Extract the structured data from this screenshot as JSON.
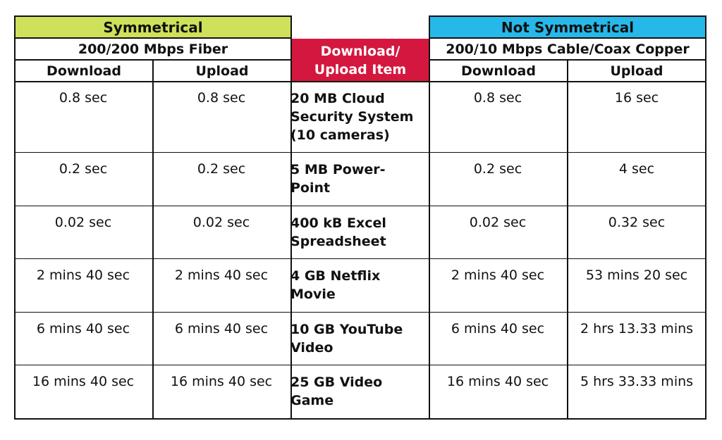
{
  "chart_data": {
    "type": "table",
    "groups": [
      {
        "title": "Symmetrical",
        "subtitle": "200/200 Mbps Fiber",
        "color": "#cfe05a"
      },
      {
        "title": "Not Symmetrical",
        "subtitle": "200/10 Mbps Cable/Coax Copper",
        "color": "#27b8ea"
      }
    ],
    "item_header": [
      "Download/",
      "Upload Item"
    ],
    "item_header_color": "#d4173e",
    "columns": [
      "Download",
      "Upload",
      "Download",
      "Upload"
    ],
    "rows": [
      {
        "item": [
          "20 MB Cloud",
          "Security System",
          "(10 cameras)"
        ],
        "sym_download": "0.8 sec",
        "sym_upload": "0.8 sec",
        "nsym_download": "0.8 sec",
        "nsym_upload": "16 sec"
      },
      {
        "item": [
          "5 MB Power-",
          "Point"
        ],
        "sym_download": "0.2 sec",
        "sym_upload": "0.2 sec",
        "nsym_download": "0.2 sec",
        "nsym_upload": "4 sec"
      },
      {
        "item": [
          "400 kB Excel",
          "Spreadsheet"
        ],
        "sym_download": "0.02 sec",
        "sym_upload": "0.02 sec",
        "nsym_download": "0.02 sec",
        "nsym_upload": "0.32 sec"
      },
      {
        "item": [
          "4 GB Netflix",
          "Movie"
        ],
        "sym_download": "2 mins 40 sec",
        "sym_upload": "2 mins 40 sec",
        "nsym_download": "2 mins 40 sec",
        "nsym_upload": "53 mins 20 sec"
      },
      {
        "item": [
          "10 GB YouTube",
          "Video"
        ],
        "sym_download": "6 mins 40 sec",
        "sym_upload": "6 mins 40 sec",
        "nsym_download": "6 mins 40 sec",
        "nsym_upload": "2 hrs 13.33 mins"
      },
      {
        "item": [
          "25 GB Video",
          "Game"
        ],
        "sym_download": "16 mins 40 sec",
        "sym_upload": "16 mins 40 sec",
        "nsym_download": "16 mins 40 sec",
        "nsym_upload": "5 hrs 33.33 mins"
      }
    ]
  }
}
